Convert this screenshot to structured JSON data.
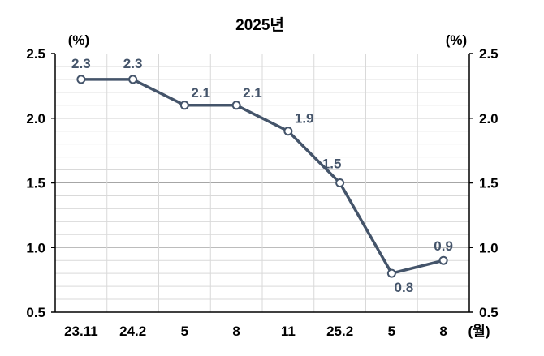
{
  "chart_data": {
    "type": "line",
    "title": "2025년",
    "ylabel_left": "(%)",
    "ylabel_right": "(%)",
    "xlabel": "(월)",
    "categories": [
      "23.11",
      "24.2",
      "5",
      "8",
      "11",
      "25.2",
      "5",
      "8"
    ],
    "series": [
      {
        "values": [
          2.3,
          2.3,
          2.1,
          2.1,
          1.9,
          1.5,
          0.8,
          0.9
        ]
      }
    ],
    "data_labels": [
      "2.3",
      "2.3",
      "2.1",
      "2.1",
      "1.9",
      "1.5",
      "0.8",
      "0.9"
    ],
    "ylim": [
      0.5,
      2.5
    ],
    "yticks": [
      "0.5",
      "1.0",
      "1.5",
      "2.0",
      "2.5"
    ],
    "grid": true,
    "line_color": "#44546a",
    "label_color": "#44546a"
  }
}
